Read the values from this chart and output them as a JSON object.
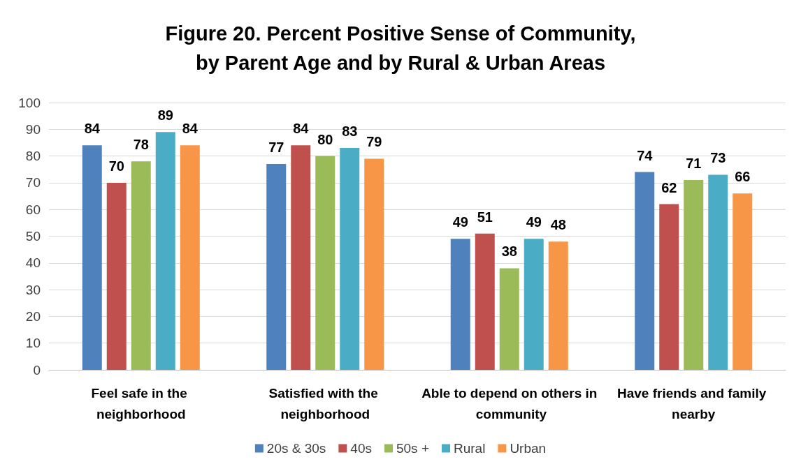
{
  "chart_data": {
    "type": "bar",
    "title": "Figure 20. Percent Positive Sense of Community,\nby Parent Age and by Rural & Urban Areas",
    "categories": [
      "Feel safe in the neighborhood",
      "Satisfied with the neighborhood",
      "Able to depend on others in community",
      "Have friends and family nearby"
    ],
    "series": [
      {
        "name": "20s & 30s",
        "color": "#4f81bd",
        "values": [
          84,
          77,
          49,
          74
        ]
      },
      {
        "name": "40s",
        "color": "#c0504d",
        "values": [
          70,
          84,
          51,
          62
        ]
      },
      {
        "name": "50s +",
        "color": "#9bbb59",
        "values": [
          78,
          80,
          38,
          71
        ]
      },
      {
        "name": "Rural",
        "color": "#4bacc6",
        "values": [
          89,
          83,
          49,
          73
        ]
      },
      {
        "name": "Urban",
        "color": "#f79646",
        "values": [
          84,
          79,
          48,
          66
        ]
      }
    ],
    "ylim": [
      0,
      100
    ],
    "yticks": [
      0,
      10,
      20,
      30,
      40,
      50,
      60,
      70,
      80,
      90,
      100
    ],
    "grid": "y",
    "legend": "bottom",
    "data_labels": true
  }
}
